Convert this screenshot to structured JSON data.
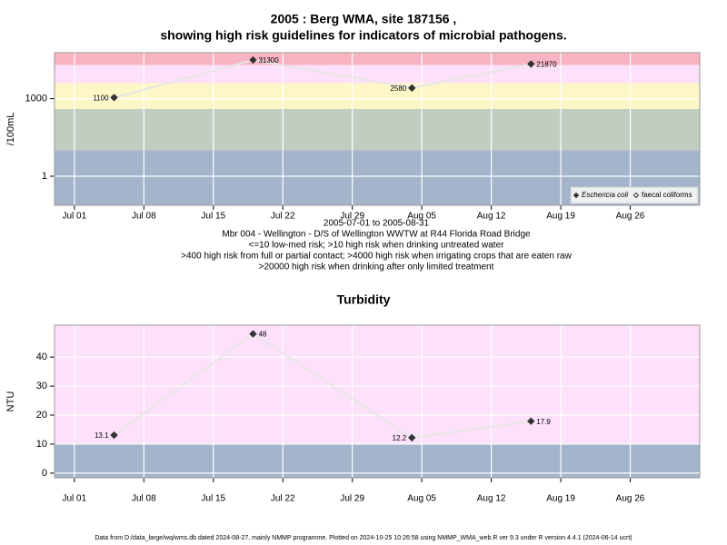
{
  "chart_data": [
    {
      "type": "line",
      "title": "2005 : Berg WMA, site 187156 ,",
      "subtitle": "showing high risk guidelines for indicators of microbial pathogens.",
      "y_label": "/100mL",
      "log_y": true,
      "x": [
        "2005-07-05",
        "2005-07-19",
        "2005-08-04",
        "2005-08-16"
      ],
      "series": [
        {
          "name": "Eschericia coli",
          "color": "#333333",
          "marker": "filled-diamond",
          "values": [
            1100,
            31300,
            2580,
            21870
          ],
          "label_side": [
            "left",
            "right",
            "left",
            "right"
          ]
        },
        {
          "name": "faecal coliforms",
          "color": "#333333",
          "marker": "open-diamond",
          "values": [
            null,
            null,
            null,
            null
          ]
        }
      ],
      "xlim": [
        "2005-06-29",
        "2005-09-02"
      ],
      "xticks": [
        {
          "value": "2005-07-01",
          "label": "Jul 01"
        },
        {
          "value": "2005-07-08",
          "label": "Jul 08"
        },
        {
          "value": "2005-07-15",
          "label": "Jul 15"
        },
        {
          "value": "2005-07-22",
          "label": "Jul 22"
        },
        {
          "value": "2005-07-29",
          "label": "Jul 29"
        },
        {
          "value": "2005-08-05",
          "label": "Aug 05"
        },
        {
          "value": "2005-08-12",
          "label": "Aug 12"
        },
        {
          "value": "2005-08-19",
          "label": "Aug 19"
        },
        {
          "value": "2005-08-26",
          "label": "Aug 26"
        }
      ],
      "ylim": [
        0.075,
        60000
      ],
      "yticks": [
        1,
        1000
      ],
      "bands": [
        {
          "from": 0.075,
          "to": 10,
          "color": "#a3b4cb"
        },
        {
          "from": 10,
          "to": 400,
          "color": "#c2cdc2"
        },
        {
          "from": 400,
          "to": 4000,
          "color": "#fdf7c8"
        },
        {
          "from": 4000,
          "to": 20000,
          "color": "#fde0f9"
        },
        {
          "from": 20000,
          "to": 60000,
          "color": "#f9b4c4"
        }
      ],
      "legend": "bottom-right",
      "grid": true,
      "notes": [
        "2005-07-01 to 2005-08-31",
        "Mbr 004 - Wellington - D/S of Wellington WWTW at R44 Florida Road Bridge",
        "<=10 low-med risk; >10 high risk when drinking untreated water",
        ">400 high risk from full or partial contact; >4000 high risk when irrigating crops that are eaten raw",
        ">20000 high risk when drinking after only limited treatment"
      ]
    },
    {
      "type": "line",
      "title": "Turbidity",
      "y_label": "NTU",
      "log_y": false,
      "x": [
        "2005-07-05",
        "2005-07-19",
        "2005-08-04",
        "2005-08-16"
      ],
      "series": [
        {
          "name": "Turbidity",
          "color": "#333333",
          "marker": "filled-diamond",
          "values": [
            13.1,
            48,
            12.2,
            17.9
          ],
          "label_side": [
            "left",
            "right",
            "left",
            "right"
          ]
        }
      ],
      "xlim": [
        "2005-06-29",
        "2005-09-02"
      ],
      "xticks": [
        {
          "value": "2005-07-01",
          "label": "Jul 01"
        },
        {
          "value": "2005-07-08",
          "label": "Jul 08"
        },
        {
          "value": "2005-07-15",
          "label": "Jul 15"
        },
        {
          "value": "2005-07-22",
          "label": "Jul 22"
        },
        {
          "value": "2005-07-29",
          "label": "Jul 29"
        },
        {
          "value": "2005-08-05",
          "label": "Aug 05"
        },
        {
          "value": "2005-08-12",
          "label": "Aug 12"
        },
        {
          "value": "2005-08-19",
          "label": "Aug 19"
        },
        {
          "value": "2005-08-26",
          "label": "Aug 26"
        }
      ],
      "ylim": [
        -1.6,
        51
      ],
      "yticks": [
        0,
        10,
        20,
        30,
        40
      ],
      "bands": [
        {
          "from": -1.6,
          "to": 10,
          "color": "#a3b4cb"
        },
        {
          "from": 10,
          "to": 51,
          "color": "#fde0f9"
        }
      ],
      "grid": true
    }
  ],
  "footer": "Data from D:/data_large/wq/wms.db dated 2024-08-27, mainly NMMP programme. Plotted on 2024-10-25 10:26:58 using NMMP_WMA_web.R ver 9.3 under R version 4.4.1 (2024-06-14 ucrt)"
}
